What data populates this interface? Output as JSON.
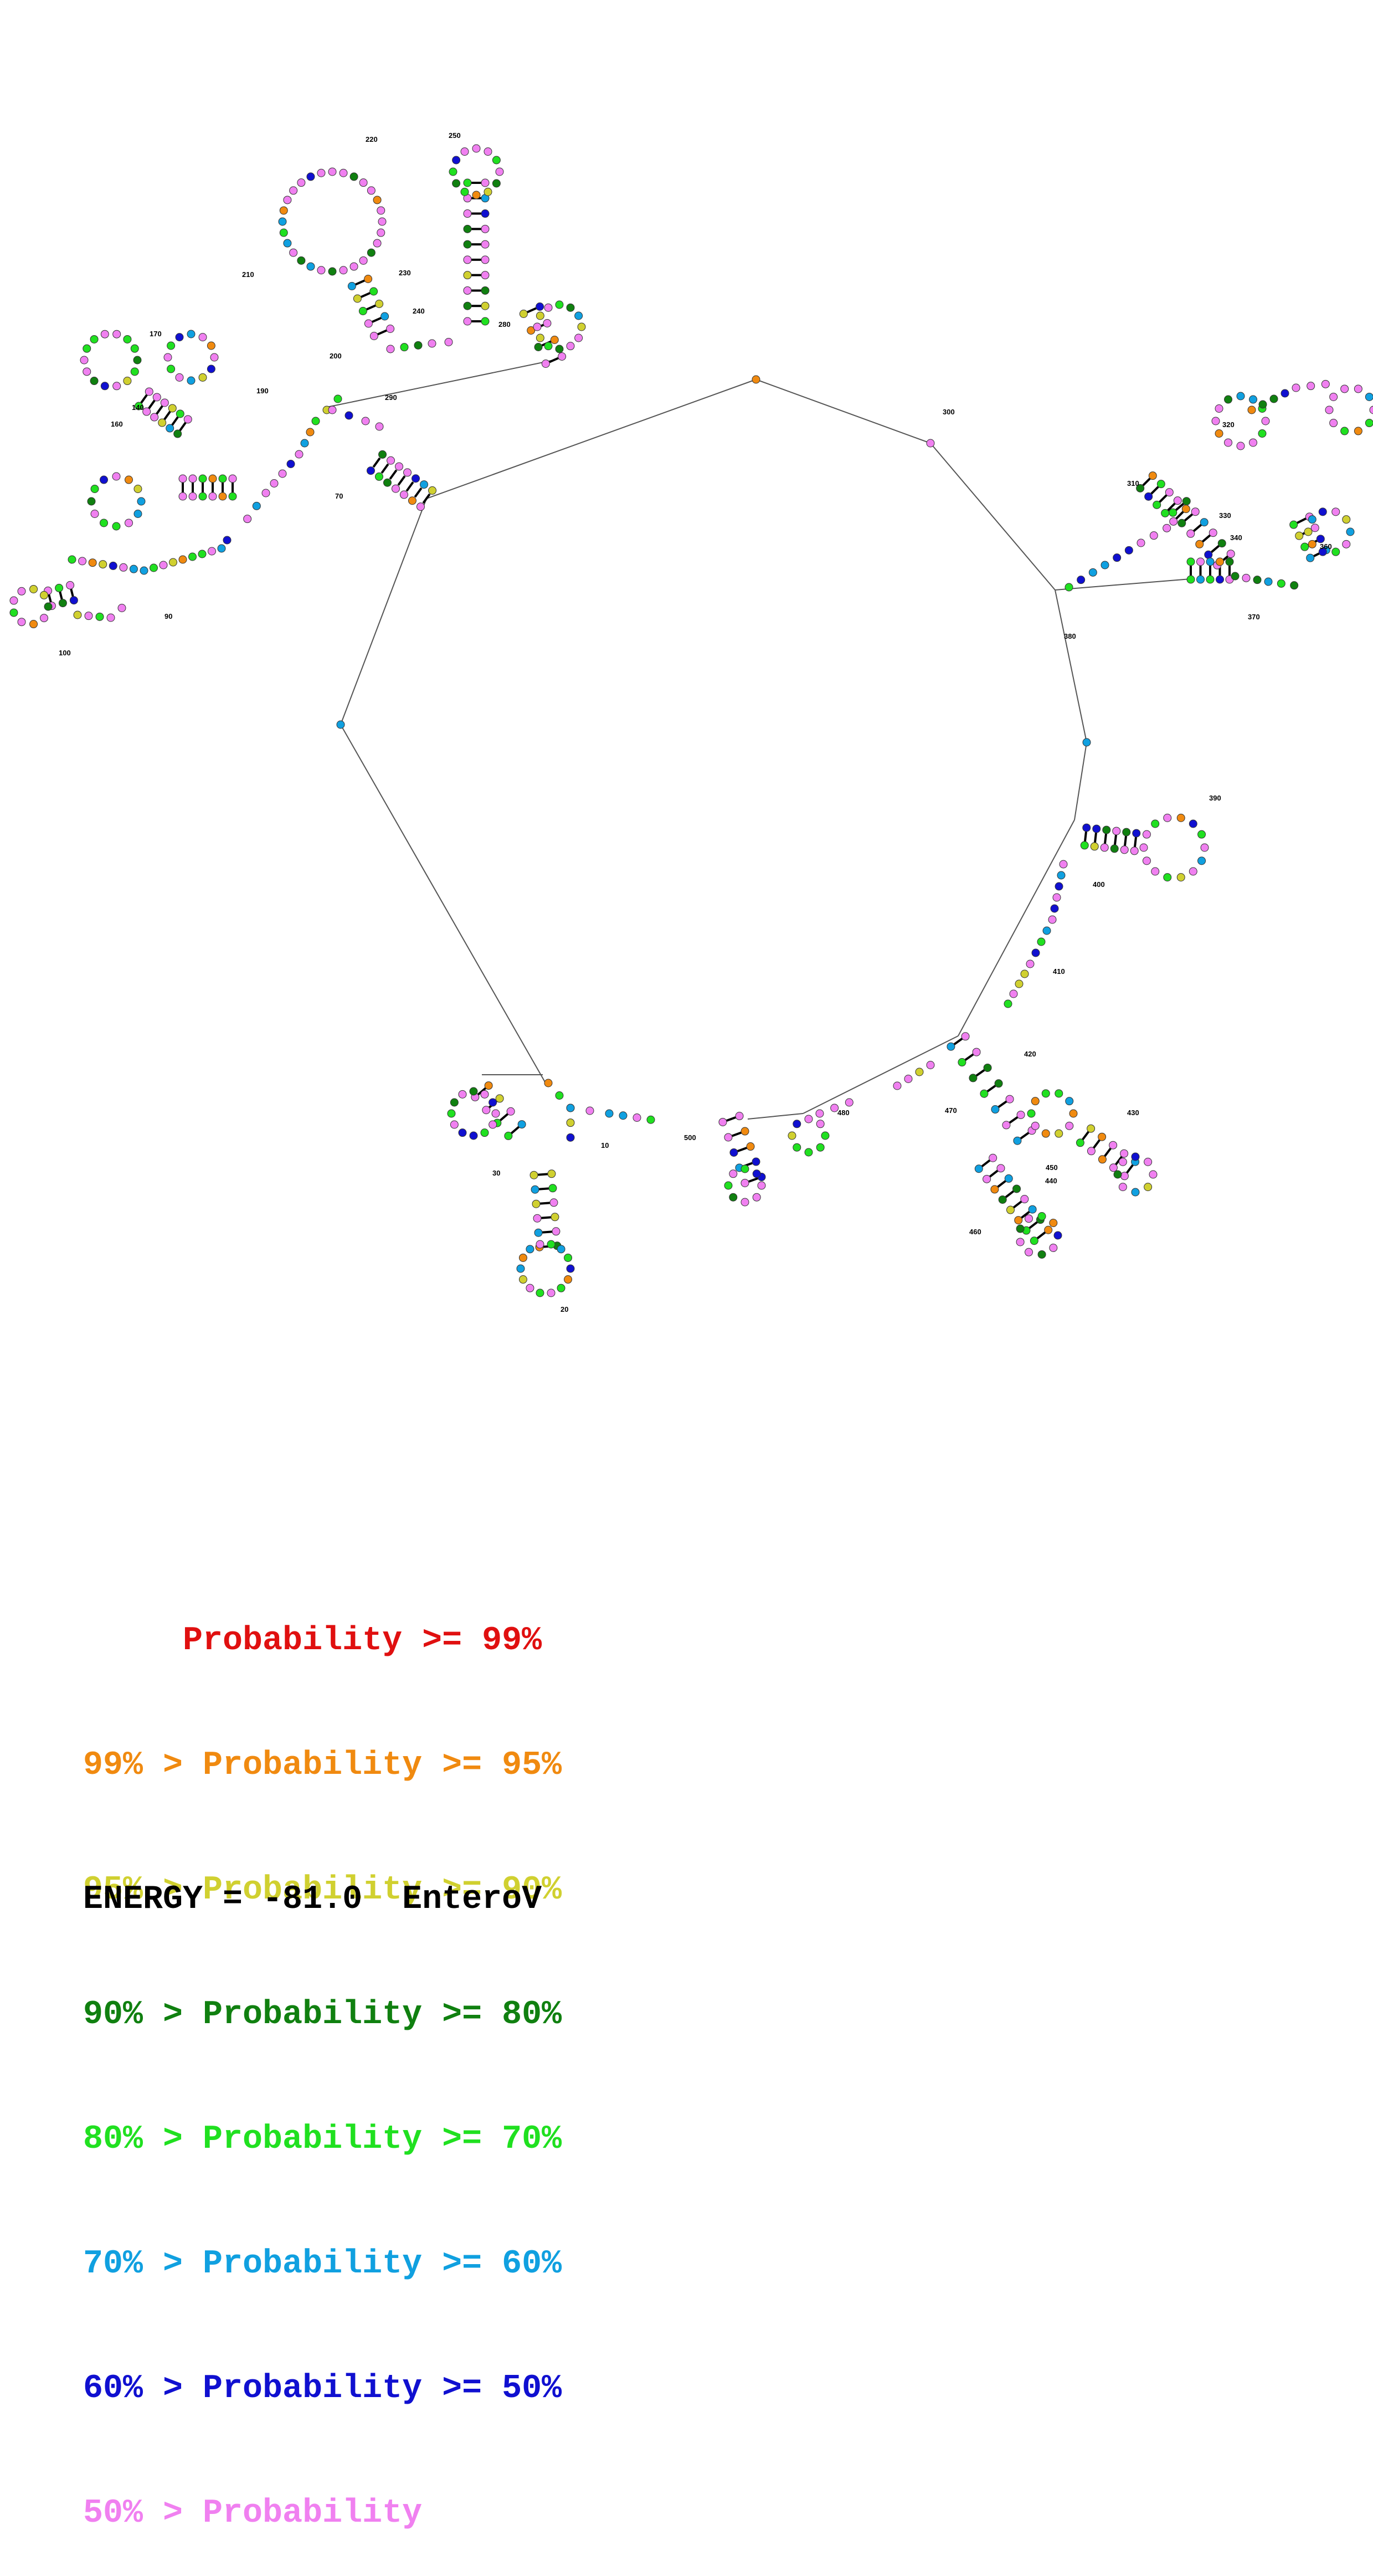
{
  "palette": {
    "red": "#e01010",
    "orange": "#f08a10",
    "yellow": "#d0d030",
    "darkgreen": "#108010",
    "green": "#20e020",
    "cyan": "#10a0e0",
    "blue": "#1010d0",
    "pink": "#f080f0"
  },
  "structure": {
    "position_labels": [
      "10",
      "20",
      "30",
      "70",
      "90",
      "100",
      "140",
      "160",
      "170",
      "190",
      "200",
      "210",
      "220",
      "230",
      "240",
      "250",
      "280",
      "290",
      "300",
      "310",
      "320",
      "330",
      "340",
      "360",
      "370",
      "380",
      "390",
      "400",
      "410",
      "420",
      "430",
      "440",
      "450",
      "460",
      "470",
      "480",
      "500"
    ]
  },
  "legend": {
    "rows": [
      {
        "text": "     Probability >= 99%",
        "color": "#e01010"
      },
      {
        "text": "99% > Probability >= 95%",
        "color": "#f08a10"
      },
      {
        "text": "95% > Probability >= 90%",
        "color": "#d0d030"
      },
      {
        "text": "90% > Probability >= 80%",
        "color": "#108010"
      },
      {
        "text": "80% > Probability >= 70%",
        "color": "#20e020"
      },
      {
        "text": "70% > Probability >= 60%",
        "color": "#10a0e0"
      },
      {
        "text": "60% > Probability >= 50%",
        "color": "#1010d0"
      },
      {
        "text": "50% > Probability",
        "color": "#f080f0"
      }
    ]
  },
  "energy_line": "ENERGY = -81.0  EnteroV"
}
